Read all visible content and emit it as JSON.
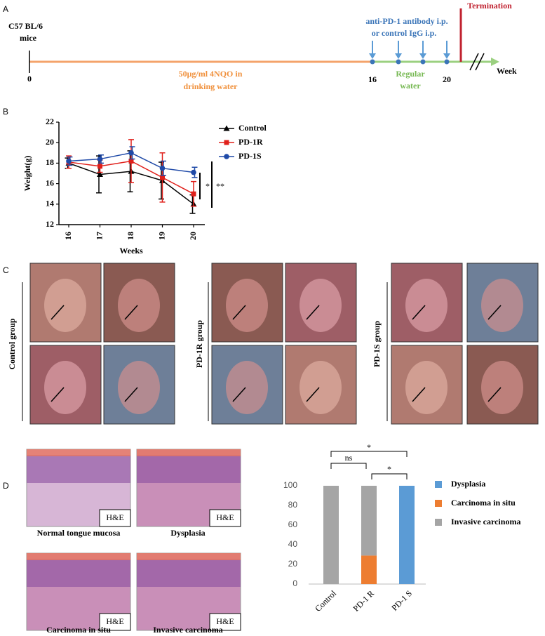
{
  "panel_labels": [
    "A",
    "B",
    "C",
    "D"
  ],
  "timeline": {
    "subject": [
      "C57 BL/6",
      "mice"
    ],
    "start_tick": "0",
    "treatment": [
      "50μg/ml 4NQO in",
      "drinking water"
    ],
    "injection": [
      "anti-PD-1 antibody i.p.",
      "or control IgG i.p."
    ],
    "ticks": [
      "16",
      "20"
    ],
    "regular": [
      "Regular",
      "water"
    ],
    "termination": "Termination",
    "axis_label": "Week"
  },
  "chart_data": [
    {
      "type": "line",
      "categories": [
        "16",
        "17",
        "18",
        "19",
        "20"
      ],
      "xlabel": "Weeks",
      "ylabel": "Weight(g)",
      "ylim": [
        12,
        22
      ],
      "yticks": [
        12,
        14,
        16,
        18,
        20,
        22
      ],
      "series": [
        {
          "name": "Control",
          "color": "#000000",
          "marker": "triangle",
          "values": [
            18.0,
            16.9,
            17.2,
            16.3,
            14.0
          ],
          "errors": [
            0.5,
            1.8,
            2.0,
            1.8,
            0.9
          ]
        },
        {
          "name": "PD-1R",
          "color": "#e0201b",
          "marker": "square",
          "values": [
            18.1,
            17.7,
            18.2,
            16.6,
            15.0
          ],
          "errors": [
            0.6,
            0.6,
            2.1,
            2.4,
            1.2
          ]
        },
        {
          "name": "PD-1S",
          "color": "#1f4aa8",
          "marker": "circle",
          "values": [
            18.2,
            18.4,
            19.0,
            17.5,
            17.1
          ],
          "errors": [
            0.4,
            0.4,
            0.6,
            0.7,
            0.5
          ]
        }
      ],
      "significance": [
        "*",
        "**"
      ]
    },
    {
      "type": "bar",
      "stacked": true,
      "categories": [
        "Control",
        "PD-1 R",
        "PD-1 S"
      ],
      "ylim": [
        0,
        100
      ],
      "yticks": [
        0,
        20,
        40,
        60,
        80,
        100
      ],
      "series": [
        {
          "name": "Dysplasia",
          "color": "#5b9bd5",
          "values": [
            0,
            0,
            100
          ]
        },
        {
          "name": "Carcinoma in situ",
          "color": "#ed7d31",
          "values": [
            0,
            29,
            0
          ]
        },
        {
          "name": "Invasive carcinoma",
          "color": "#a5a5a5",
          "values": [
            100,
            71,
            0
          ]
        }
      ],
      "brackets": [
        "ns",
        "*",
        "*"
      ]
    }
  ],
  "photos": {
    "groups": [
      "Control group",
      "PD-1R group",
      "PD-1S group"
    ]
  },
  "histology": {
    "images": [
      {
        "caption": "Normal tongue mucosa",
        "stain": "H&E"
      },
      {
        "caption": "Dysplasia",
        "stain": "H&E"
      },
      {
        "caption": "Carcinoma in situ",
        "stain": "H&E"
      },
      {
        "caption": "Invasive carcinoma",
        "stain": "H&E"
      }
    ]
  }
}
